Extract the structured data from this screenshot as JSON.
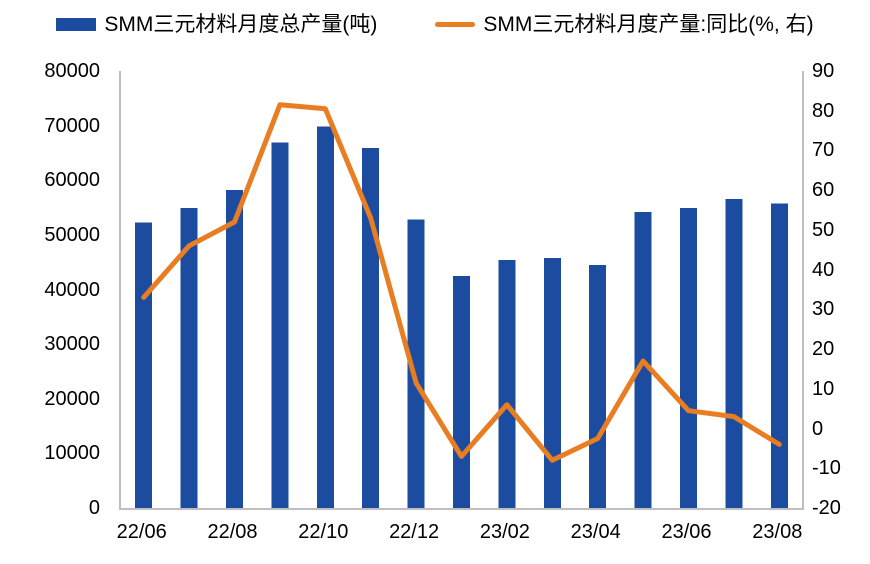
{
  "chart_data": {
    "type": "combo-bar-line",
    "title": "",
    "categories": [
      "22/06",
      "22/07",
      "22/08",
      "22/09",
      "22/10",
      "22/11",
      "22/12",
      "23/01",
      "23/02",
      "23/03",
      "23/04",
      "23/05",
      "23/06",
      "23/07",
      "23/08"
    ],
    "x_tick_labels": [
      "22/06",
      "22/08",
      "22/10",
      "22/12",
      "23/02",
      "23/04",
      "23/06",
      "23/08"
    ],
    "series": [
      {
        "name": "SMM三元材料月度总产量(吨)",
        "type": "bar",
        "axis": "left",
        "color": "#1B4C9F",
        "values": [
          52300,
          54900,
          58200,
          66900,
          69800,
          65900,
          52800,
          42500,
          45400,
          45800,
          44500,
          54200,
          54900,
          56600,
          55700
        ]
      },
      {
        "name": "SMM三元材料月度产量:同比(%, 右)",
        "type": "line",
        "axis": "right",
        "color": "#E87D22",
        "values": [
          33,
          46,
          52,
          81.5,
          80.5,
          53,
          11.5,
          -7,
          6,
          -8,
          -2.5,
          17,
          4.5,
          3,
          -4
        ]
      }
    ],
    "left_axis": {
      "min": 0,
      "max": 80000,
      "step": 10000,
      "ticks": [
        "80000",
        "70000",
        "60000",
        "50000",
        "40000",
        "30000",
        "20000",
        "10000",
        "0"
      ]
    },
    "right_axis": {
      "min": -20,
      "max": 90,
      "step": 10,
      "ticks": [
        "90",
        "80",
        "70",
        "60",
        "50",
        "40",
        "30",
        "20",
        "10",
        "0",
        "-10",
        "-20"
      ]
    },
    "legend_position": "top",
    "grid": false,
    "axis_line_color": "#BFBFBF",
    "text_color": "#000000"
  }
}
